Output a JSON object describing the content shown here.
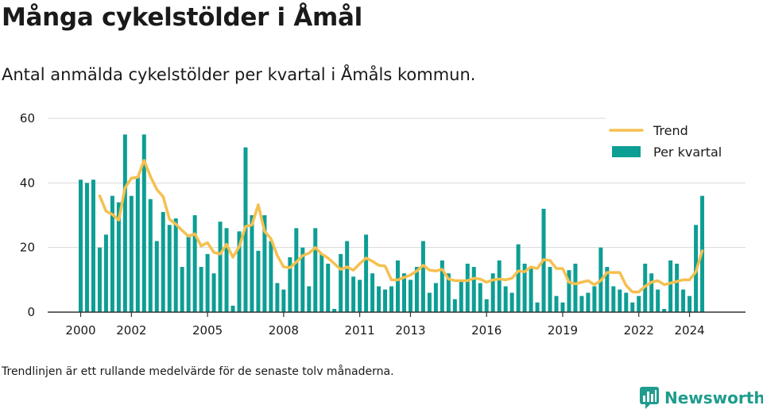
{
  "title": "Många cykelstölder i Åmål",
  "subtitle": "Antal anmälda cykelstölder per kvartal i Åmåls kommun.",
  "footnote": "Trendlinjen är ett rullande medelvärde för de senaste tolv månaderna.",
  "brand": "Newsworthy",
  "colors": {
    "bars": "#0d9e94",
    "trend": "#f5c04f",
    "brand": "#1f9c8d"
  },
  "chart_data": {
    "type": "bar",
    "x_start": "2000 Q1",
    "ylim": [
      0,
      60
    ],
    "yticks": [
      0,
      20,
      40,
      60
    ],
    "xticks": [
      "2000",
      "2002",
      "2005",
      "2008",
      "2011",
      "2013",
      "2016",
      "2019",
      "2022",
      "2024"
    ],
    "legend_position": "top-right",
    "grid": true,
    "series": [
      {
        "name": "Per kvartal",
        "type": "bar",
        "values": [
          41,
          40,
          41,
          20,
          24,
          36,
          34,
          55,
          36,
          42,
          55,
          35,
          22,
          31,
          27,
          29,
          14,
          24,
          30,
          14,
          18,
          12,
          28,
          26,
          2,
          25,
          51,
          30,
          19,
          30,
          22,
          9,
          7,
          17,
          26,
          20,
          8,
          26,
          18,
          15,
          1,
          18,
          22,
          11,
          10,
          24,
          12,
          8,
          7,
          8,
          16,
          12,
          10,
          14,
          22,
          6,
          9,
          16,
          12,
          4,
          10,
          15,
          14,
          9,
          4,
          12,
          16,
          8,
          6,
          21,
          15,
          14,
          3,
          32,
          14,
          5,
          3,
          13,
          15,
          5,
          6,
          8,
          20,
          14,
          8,
          7,
          6,
          3,
          5,
          15,
          12,
          7,
          1,
          16,
          15,
          7,
          5,
          27,
          36
        ]
      },
      {
        "name": "Trend",
        "type": "line",
        "values": [
          null,
          null,
          null,
          36,
          31.25,
          30.25,
          28.5,
          38.5,
          41.5,
          41.75,
          47,
          42,
          38,
          35.75,
          28.75,
          27.25,
          25.25,
          23.5,
          24.25,
          20.5,
          21.5,
          18.5,
          18,
          21,
          17,
          20.25,
          26.5,
          27,
          33.25,
          25,
          22.75,
          17.5,
          14,
          13.75,
          15.5,
          17.5,
          18.25,
          20,
          18,
          16.75,
          15,
          13.25,
          14,
          13,
          15,
          16.75,
          15.75,
          14.5,
          14.25,
          10,
          10,
          10.75,
          11.5,
          12.75,
          14.5,
          13,
          12.75,
          13.25,
          10.25,
          9.75,
          9.75,
          9.75,
          10.5,
          10.25,
          9.25,
          10,
          10.25,
          10,
          10.5,
          12.75,
          12.5,
          14,
          13.5,
          16.25,
          16,
          13.5,
          13.5,
          9.25,
          8.75,
          9.25,
          9.75,
          8.5,
          9.75,
          12.25,
          12.25,
          12.25,
          8.25,
          6.25,
          6.25,
          8,
          9.25,
          9.75,
          8.5,
          9,
          9.5,
          10,
          10,
          12.5,
          19
        ]
      }
    ]
  }
}
